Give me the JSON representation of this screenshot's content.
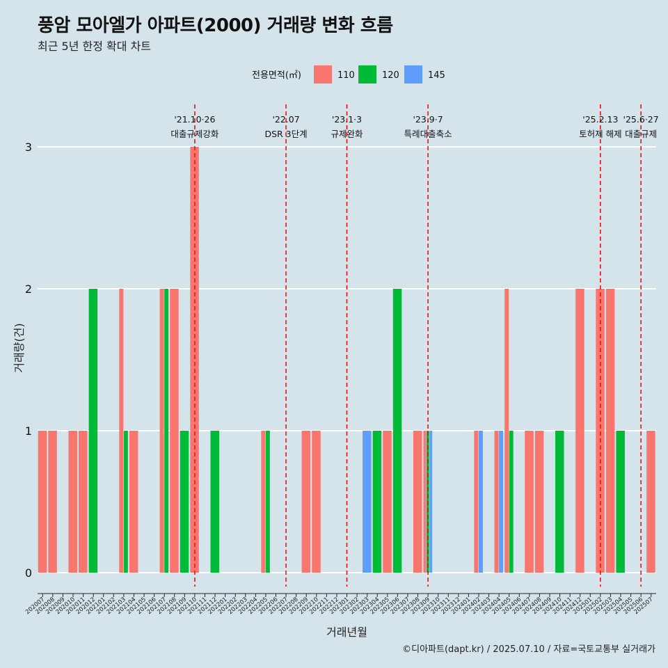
{
  "chart_data": {
    "type": "bar",
    "title": "풍암 모아엘가 아파트(2000) 거래량 변화 흐름",
    "subtitle": "최근 5년 한정 확대 차트",
    "xlabel": "거래년월",
    "ylabel": "거래량(건)",
    "legend_title": "전용면적(㎡)",
    "caption": "©디아파트(dapt.kr) / 2025.07.10 / 자료=국토교통부 실거래가",
    "ylim": [
      0,
      3
    ],
    "yticks": [
      0,
      1,
      2,
      3
    ],
    "grid": true,
    "legend_position": "top",
    "categories": [
      "202007",
      "202008",
      "202009",
      "202010",
      "202011",
      "202012",
      "202101",
      "202102",
      "202103",
      "202104",
      "202105",
      "202106",
      "202107",
      "202108",
      "202109",
      "202110",
      "202111",
      "202112",
      "202201",
      "202202",
      "202203",
      "202204",
      "202205",
      "202206",
      "202207",
      "202208",
      "202209",
      "202210",
      "202211",
      "202212",
      "202301",
      "202302",
      "202303",
      "202304",
      "202305",
      "202306",
      "202307",
      "202308",
      "202309",
      "202310",
      "202311",
      "202312",
      "202401",
      "202402",
      "202403",
      "202404",
      "202405",
      "202406",
      "202407",
      "202408",
      "202409",
      "202410",
      "202411",
      "202412",
      "202501",
      "202502",
      "202503",
      "202504",
      "202505",
      "202506",
      "202507"
    ],
    "series": [
      {
        "name": "110",
        "color": "#f8766d",
        "values": {
          "202007": 1,
          "202008": 1,
          "202010": 1,
          "202011": 1,
          "202103": 2,
          "202104": 1,
          "202107": 2,
          "202108": 2,
          "202110": 3,
          "202205": 1,
          "202209": 1,
          "202210": 1,
          "202305": 1,
          "202308": 1,
          "202309": 1,
          "202402": 1,
          "202404": 1,
          "202405": 2,
          "202407": 1,
          "202408": 1,
          "202412": 2,
          "202502": 2,
          "202503": 2,
          "202507": 1
        }
      },
      {
        "name": "120",
        "color": "#00ba38",
        "values": {
          "202012": 2,
          "202103": 1,
          "202107": 2,
          "202109": 1,
          "202112": 1,
          "202205": 1,
          "202304": 1,
          "202306": 2,
          "202309": 1,
          "202405": 1,
          "202410": 1,
          "202504": 1
        }
      },
      {
        "name": "145",
        "color": "#619cff",
        "values": {
          "202303": 1,
          "202309": 1,
          "202402": 1,
          "202404": 1
        }
      }
    ],
    "events": [
      {
        "date": "202110",
        "label_date": "'21.10·26",
        "label_text": "대출규제강화"
      },
      {
        "date": "202207",
        "label_date": "'22.07",
        "label_text": "DSR 3단계"
      },
      {
        "date": "202301",
        "label_date": "'23.1·3",
        "label_text": "규제완화"
      },
      {
        "date": "202309",
        "label_date": "'23.9·7",
        "label_text": "특례대출축소"
      },
      {
        "date": "202502",
        "label_date": "'25.2.13",
        "label_text": "토허제 해제"
      },
      {
        "date": "202506",
        "label_date": "'25.6·27",
        "label_text": "대출규제"
      }
    ],
    "event_color": "#ee1111"
  }
}
